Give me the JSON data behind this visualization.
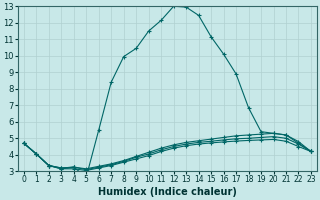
{
  "title": "",
  "xlabel": "Humidex (Indice chaleur)",
  "ylabel": "",
  "bg_color": "#c8e8e8",
  "line_color": "#006666",
  "xlim": [
    -0.5,
    23.5
  ],
  "ylim": [
    3,
    13
  ],
  "xticks": [
    0,
    1,
    2,
    3,
    4,
    5,
    6,
    7,
    8,
    9,
    10,
    11,
    12,
    13,
    14,
    15,
    16,
    17,
    18,
    19,
    20,
    21,
    22,
    23
  ],
  "yticks": [
    3,
    4,
    5,
    6,
    7,
    8,
    9,
    10,
    11,
    12,
    13
  ],
  "series": [
    {
      "x": [
        0,
        1,
        2,
        3,
        4,
        5,
        6,
        7,
        8,
        9,
        10,
        11,
        12,
        13,
        14,
        15,
        16,
        17,
        18,
        19,
        20,
        21,
        22,
        23
      ],
      "y": [
        4.7,
        4.05,
        3.35,
        3.15,
        3.25,
        2.65,
        5.5,
        8.4,
        9.95,
        10.45,
        11.5,
        12.15,
        13.0,
        12.95,
        12.45,
        11.15,
        10.1,
        8.9,
        6.85,
        5.4,
        5.3,
        5.2,
        4.7,
        4.2
      ]
    },
    {
      "x": [
        0,
        1,
        2,
        3,
        4,
        5,
        6,
        7,
        8,
        9,
        10,
        11,
        12,
        13,
        14,
        15,
        16,
        17,
        18,
        19,
        20,
        21,
        22,
        23
      ],
      "y": [
        4.7,
        4.05,
        3.35,
        3.2,
        3.25,
        3.15,
        3.3,
        3.45,
        3.65,
        3.9,
        4.15,
        4.4,
        4.6,
        4.75,
        4.85,
        4.95,
        5.05,
        5.15,
        5.2,
        5.25,
        5.3,
        5.2,
        4.8,
        4.2
      ]
    },
    {
      "x": [
        0,
        1,
        2,
        3,
        4,
        5,
        6,
        7,
        8,
        9,
        10,
        11,
        12,
        13,
        14,
        15,
        16,
        17,
        18,
        19,
        20,
        21,
        22,
        23
      ],
      "y": [
        4.7,
        4.05,
        3.35,
        3.2,
        3.25,
        3.1,
        3.25,
        3.4,
        3.6,
        3.85,
        4.05,
        4.3,
        4.5,
        4.65,
        4.75,
        4.82,
        4.9,
        4.97,
        5.0,
        5.05,
        5.1,
        5.0,
        4.65,
        4.2
      ]
    },
    {
      "x": [
        0,
        1,
        2,
        3,
        4,
        5,
        6,
        7,
        8,
        9,
        10,
        11,
        12,
        13,
        14,
        15,
        16,
        17,
        18,
        19,
        20,
        21,
        22,
        23
      ],
      "y": [
        4.7,
        4.05,
        3.35,
        3.15,
        3.15,
        3.05,
        3.2,
        3.35,
        3.55,
        3.75,
        3.95,
        4.2,
        4.4,
        4.55,
        4.65,
        4.72,
        4.78,
        4.83,
        4.87,
        4.9,
        4.93,
        4.82,
        4.5,
        4.2
      ]
    }
  ]
}
